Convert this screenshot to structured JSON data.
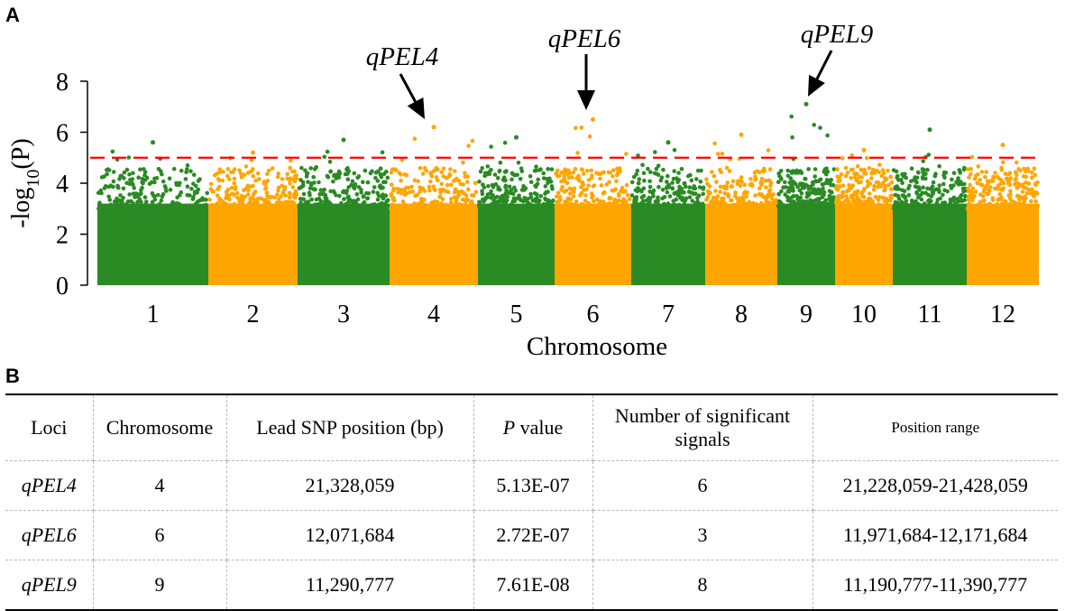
{
  "panel_a_label": "A",
  "panel_b_label": "B",
  "colors": {
    "green": "#2a8a23",
    "orange": "#ffa500",
    "threshold": "#ff0000"
  },
  "chart_data": {
    "type": "scatter",
    "subtype": "manhattan",
    "ylabel": "-log10(P)",
    "ylabel_parts": {
      "base": "-log",
      "sub": "10",
      "rest": "(P)"
    },
    "xlabel": "Chromosome",
    "ylim": [
      0,
      8
    ],
    "yticks": [
      0,
      2,
      4,
      6,
      8
    ],
    "threshold": 5,
    "chromosomes": [
      {
        "label": "1",
        "max": 5.6,
        "color": "green"
      },
      {
        "label": "2",
        "max": 5.2,
        "color": "orange"
      },
      {
        "label": "3",
        "max": 5.7,
        "color": "green"
      },
      {
        "label": "4",
        "max": 6.2,
        "color": "orange"
      },
      {
        "label": "5",
        "max": 5.8,
        "color": "green"
      },
      {
        "label": "6",
        "max": 6.5,
        "color": "orange"
      },
      {
        "label": "7",
        "max": 5.6,
        "color": "green"
      },
      {
        "label": "8",
        "max": 5.9,
        "color": "orange"
      },
      {
        "label": "9",
        "max": 7.1,
        "color": "green"
      },
      {
        "label": "10",
        "max": 5.3,
        "color": "orange"
      },
      {
        "label": "11",
        "max": 6.1,
        "color": "green"
      },
      {
        "label": "12",
        "max": 5.5,
        "color": "orange"
      }
    ],
    "annotations": [
      {
        "label": "qPEL4",
        "chromosome": "4",
        "value": 6.2
      },
      {
        "label": "qPEL6",
        "chromosome": "6",
        "value": 6.5
      },
      {
        "label": "qPEL9",
        "chromosome": "9",
        "value": 7.1
      }
    ]
  },
  "table": {
    "headers": {
      "loci": "Loci",
      "chromosome": "Chromosome",
      "lead_snp": "Lead SNP position (bp)",
      "p_value_italic": "P",
      "p_value_rest": " value",
      "num_signals_line1": "Number of significant",
      "num_signals_line2": "signals",
      "position_range": "Position range"
    },
    "rows": [
      {
        "loci": "qPEL4",
        "chromosome": "4",
        "lead_snp": "21,328,059",
        "p_value": "5.13E-07",
        "signals": "6",
        "range": "21,228,059-21,428,059"
      },
      {
        "loci": "qPEL6",
        "chromosome": "6",
        "lead_snp": "12,071,684",
        "p_value": "2.72E-07",
        "signals": "3",
        "range": "11,971,684-12,171,684"
      },
      {
        "loci": "qPEL9",
        "chromosome": "9",
        "lead_snp": "11,290,777",
        "p_value": "7.61E-08",
        "signals": "8",
        "range": "11,190,777-11,390,777"
      }
    ]
  }
}
